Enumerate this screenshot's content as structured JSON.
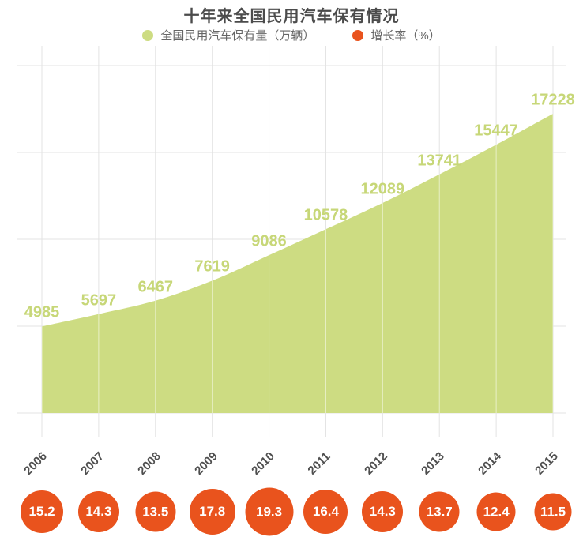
{
  "title": "十年来全国民用汽车保有情况",
  "legend": [
    {
      "label": "全国民用汽车保有量（万辆）",
      "color": "#cddc82"
    },
    {
      "label": "增长率（%）",
      "color": "#e9531d"
    }
  ],
  "chart_data": {
    "type": "area",
    "title": "十年来全国民用汽车保有情况",
    "categories": [
      "2006",
      "2007",
      "2008",
      "2009",
      "2010",
      "2011",
      "2012",
      "2013",
      "2014",
      "2015"
    ],
    "series": [
      {
        "name": "全国民用汽车保有量（万辆）",
        "type": "area",
        "color": "#cddc82",
        "values": [
          4985,
          5697,
          6467,
          7619,
          9086,
          10578,
          12089,
          13741,
          15447,
          17228
        ]
      },
      {
        "name": "增长率（%）",
        "type": "bubble",
        "color": "#e9531d",
        "values": [
          15.2,
          14.3,
          13.5,
          17.8,
          19.3,
          16.4,
          14.3,
          13.7,
          12.4,
          11.5
        ]
      }
    ],
    "ylim": [
      0,
      20000
    ],
    "grid": true,
    "legend_position": "top",
    "x_axis_rotation": -45
  },
  "colors": {
    "area_fill": "#cddc82",
    "value_label": "#c7d778",
    "growth_bubble": "#e9531d",
    "bubble_text": "#ffffff",
    "axis_text": "#4f4f4f",
    "title_text": "#4b4b4b",
    "legend_text": "#666666",
    "gridline": "#e3e3e3",
    "grid_over_area": "rgba(255,255,255,0.55)"
  }
}
